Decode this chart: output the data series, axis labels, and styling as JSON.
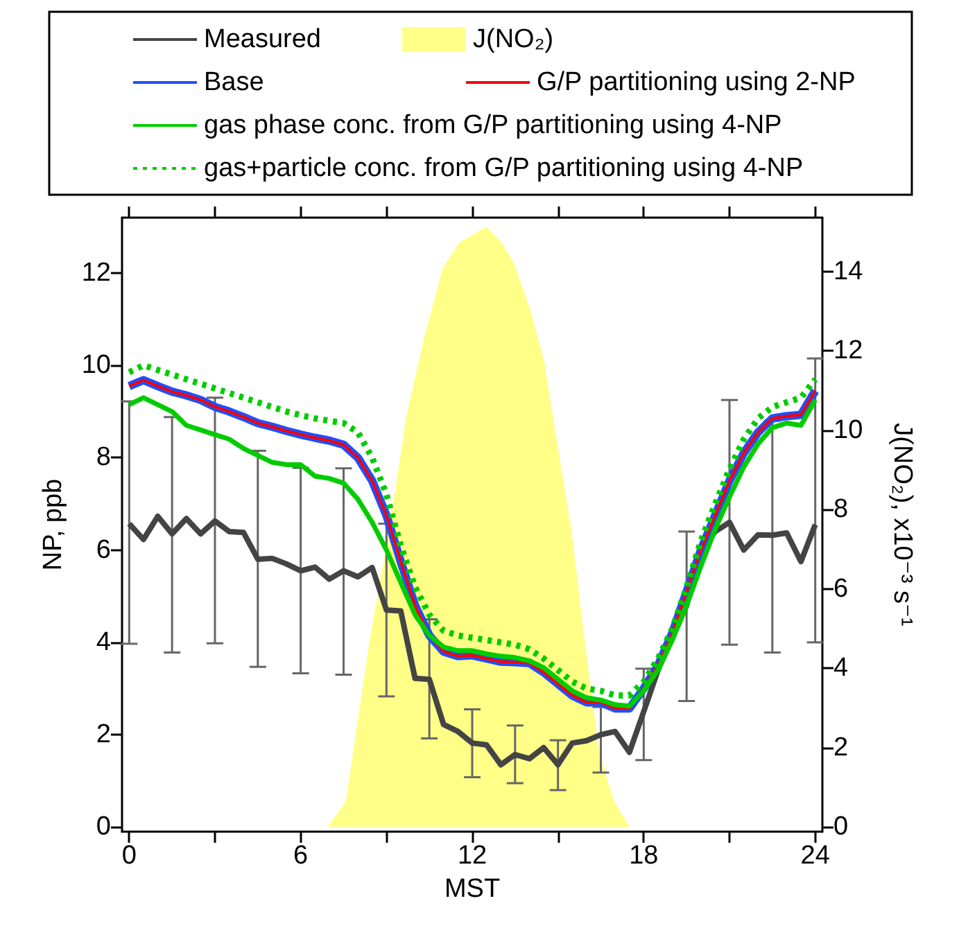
{
  "chart_data": {
    "type": "line",
    "xlabel": "MST",
    "ylabel": "NP, ppb",
    "y2label": "J(NO₂), x10⁻³ s⁻¹",
    "xlim": [
      -0.25,
      24.25
    ],
    "xticks": [
      0,
      {
        "value": 3,
        "label": null
      },
      6,
      {
        "value": 9,
        "label": null
      },
      12,
      {
        "value": 15,
        "label": null
      },
      18,
      {
        "value": 21,
        "label": null
      },
      24
    ],
    "ylim": [
      -0.1,
      13.2
    ],
    "yticks": [
      0,
      2,
      4,
      6,
      8,
      10,
      12
    ],
    "y2lim": [
      -0.12,
      15.36
    ],
    "y2ticks": [
      0,
      2,
      4,
      6,
      8,
      10,
      12,
      14
    ],
    "x": [
      0,
      0.5,
      1,
      1.5,
      2,
      2.5,
      3,
      3.5,
      4,
      4.5,
      5,
      5.5,
      6,
      6.5,
      7,
      7.5,
      8,
      8.5,
      9,
      9.5,
      10,
      10.5,
      11,
      11.5,
      12,
      12.5,
      13,
      13.5,
      14,
      14.5,
      15,
      15.5,
      16,
      16.5,
      17,
      17.5,
      18,
      18.5,
      19,
      19.5,
      20,
      20.5,
      21,
      21.5,
      22,
      22.5,
      23,
      23.5,
      24
    ],
    "grid": false,
    "legend": "top",
    "marker": "none",
    "series": [
      {
        "name": "Measured",
        "color": "#444444",
        "line_style": "solid",
        "values": [
          6.57,
          6.23,
          6.73,
          6.35,
          6.68,
          6.35,
          6.63,
          6.4,
          6.38,
          5.8,
          5.82,
          5.7,
          5.55,
          5.63,
          5.37,
          5.55,
          5.42,
          5.62,
          4.7,
          4.68,
          3.22,
          3.2,
          2.22,
          2.07,
          1.82,
          1.78,
          1.35,
          1.57,
          1.48,
          1.72,
          1.35,
          1.82,
          1.87,
          2.0,
          2.07,
          1.62,
          2.5,
          3.4,
          4.1,
          4.8,
          6.0,
          6.4,
          6.6,
          6.0,
          6.33,
          6.32,
          6.37,
          5.75,
          6.55
        ],
        "errors": [
          [
            3.97,
            9.22
          ],
          null,
          null,
          [
            3.78,
            8.88
          ],
          null,
          null,
          [
            3.98,
            9.3
          ],
          null,
          null,
          [
            3.47,
            8.15
          ],
          null,
          null,
          [
            3.33,
            7.78
          ],
          null,
          null,
          [
            3.3,
            7.77
          ],
          null,
          null,
          [
            2.83,
            6.57
          ],
          null,
          null,
          [
            1.92,
            4.5
          ],
          null,
          null,
          [
            1.08,
            2.55
          ],
          null,
          null,
          [
            0.95,
            2.2
          ],
          null,
          null,
          [
            0.8,
            1.88
          ],
          null,
          null,
          [
            1.18,
            2.6
          ],
          null,
          null,
          [
            1.45,
            3.43
          ],
          null,
          null,
          [
            2.73,
            6.4
          ],
          null,
          null,
          [
            3.95,
            9.25
          ],
          null,
          null,
          [
            3.78,
            8.8
          ],
          null,
          null,
          [
            4.0,
            10.15
          ]
        ]
      },
      {
        "name": "J(NO₂)",
        "type": "area",
        "axis": "y2",
        "color": "#ffff88",
        "x": [
          6.94,
          7.58,
          8.4,
          9.03,
          9.7,
          10.32,
          10.97,
          11.53,
          12.5,
          12.98,
          13.47,
          14.03,
          14.51,
          15.0,
          15.48,
          15.96,
          16.45,
          16.93,
          17.5
        ],
        "values": [
          0,
          0.64,
          4.66,
          7.2,
          10.36,
          12.34,
          14.08,
          14.72,
          15.13,
          14.78,
          14.2,
          13.04,
          11.76,
          9.55,
          7.45,
          4.54,
          1.86,
          0.7,
          0
        ]
      },
      {
        "name": "Base",
        "color": "#1f4fff",
        "line_style": "solid",
        "values": [
          9.55,
          9.68,
          9.55,
          9.43,
          9.35,
          9.25,
          9.1,
          9.0,
          8.88,
          8.75,
          8.67,
          8.58,
          8.5,
          8.43,
          8.37,
          8.28,
          8.0,
          7.5,
          6.75,
          5.75,
          4.8,
          4.15,
          3.8,
          3.7,
          3.72,
          3.65,
          3.58,
          3.57,
          3.55,
          3.35,
          3.1,
          2.85,
          2.7,
          2.7,
          2.57,
          2.57,
          3.0,
          3.5,
          4.2,
          5.1,
          6.0,
          6.75,
          7.5,
          8.1,
          8.55,
          8.85,
          8.9,
          8.93,
          9.45
        ]
      },
      {
        "name": "G/P partitioning using 2-NP",
        "color": "#ff0000",
        "line_style": "solid",
        "values": [
          9.55,
          9.68,
          9.55,
          9.43,
          9.35,
          9.25,
          9.1,
          9.0,
          8.88,
          8.75,
          8.67,
          8.58,
          8.5,
          8.43,
          8.37,
          8.28,
          8.0,
          7.5,
          6.75,
          5.75,
          4.8,
          4.15,
          3.8,
          3.7,
          3.72,
          3.65,
          3.58,
          3.57,
          3.55,
          3.35,
          3.1,
          2.85,
          2.7,
          2.7,
          2.57,
          2.57,
          3.0,
          3.5,
          4.2,
          5.1,
          6.0,
          6.75,
          7.5,
          8.1,
          8.55,
          8.85,
          8.9,
          8.93,
          9.45
        ]
      },
      {
        "name": "gas phase conc. from G/P partitioning using 4-NP",
        "color": "#00cc00",
        "line_style": "solid",
        "values": [
          9.15,
          9.3,
          9.15,
          9.0,
          8.7,
          8.6,
          8.5,
          8.4,
          8.2,
          8.05,
          7.9,
          7.85,
          7.85,
          7.6,
          7.55,
          7.45,
          7.1,
          6.6,
          6.0,
          5.3,
          4.6,
          4.15,
          3.9,
          3.82,
          3.82,
          3.75,
          3.7,
          3.67,
          3.6,
          3.45,
          3.2,
          2.95,
          2.8,
          2.75,
          2.65,
          2.62,
          2.95,
          3.4,
          4.05,
          4.8,
          5.65,
          6.45,
          7.15,
          7.8,
          8.3,
          8.65,
          8.75,
          8.7,
          9.25
        ]
      },
      {
        "name": "gas+particle conc. from G/P partitioning using 4-NP",
        "color": "#00cc00",
        "line_style": "dotted",
        "values": [
          9.85,
          10.0,
          9.9,
          9.8,
          9.7,
          9.6,
          9.5,
          9.4,
          9.3,
          9.2,
          9.1,
          9.0,
          8.92,
          8.85,
          8.8,
          8.75,
          8.55,
          8.0,
          7.2,
          6.1,
          5.2,
          4.6,
          4.25,
          4.15,
          4.1,
          4.05,
          4.0,
          3.95,
          3.85,
          3.65,
          3.4,
          3.15,
          3.0,
          2.95,
          2.85,
          2.85,
          3.15,
          3.65,
          4.3,
          5.2,
          6.2,
          7.0,
          7.75,
          8.4,
          8.85,
          9.1,
          9.2,
          9.3,
          9.7
        ]
      }
    ]
  }
}
